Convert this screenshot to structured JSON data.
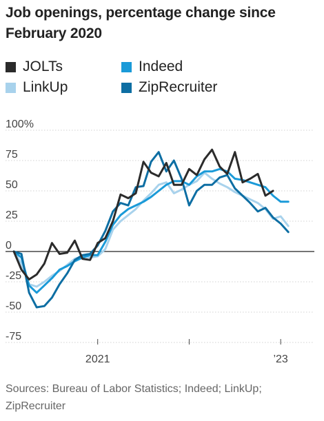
{
  "title": "Job openings, percentage change since February 2020",
  "source": "Sources: Bureau of Labor Statistics; Indeed; LinkUp; ZipRecruiter",
  "legend": [
    {
      "name": "JOLTs",
      "color": "#2b2b2b"
    },
    {
      "name": "Indeed",
      "color": "#1a9ad8"
    },
    {
      "name": "LinkUp",
      "color": "#a8d2ec"
    },
    {
      "name": "ZipRecruiter",
      "color": "#0d6ea3"
    }
  ],
  "chart_data": {
    "type": "line",
    "title": "Job openings, percentage change since February 2020",
    "xlabel": "",
    "ylabel": "",
    "y_unit": "%",
    "ylim": [
      -80,
      100
    ],
    "yticks": [
      100,
      75,
      50,
      25,
      0,
      -25,
      -50,
      -75
    ],
    "ytick_labels": [
      "100%",
      "75",
      "50",
      "25",
      "0",
      "-25",
      "-50",
      "-75"
    ],
    "xlim": [
      "2020-01",
      "2023-02"
    ],
    "xticks": [
      "2021-01",
      "2022-01",
      "2023-01"
    ],
    "xtick_labels": [
      "2021",
      "",
      "’23"
    ],
    "grid": "horizontal",
    "legend_position": "top",
    "series": [
      {
        "name": "JOLTs",
        "color": "#2b2b2b",
        "points": [
          [
            "2020-02",
            0
          ],
          [
            "2020-03",
            -15
          ],
          [
            "2020-04",
            -23
          ],
          [
            "2020-05",
            -19
          ],
          [
            "2020-06",
            -10
          ],
          [
            "2020-07",
            7
          ],
          [
            "2020-08",
            -2
          ],
          [
            "2020-09",
            -1
          ],
          [
            "2020-10",
            9
          ],
          [
            "2020-11",
            -6
          ],
          [
            "2020-12",
            -7
          ],
          [
            "2021-01",
            7
          ],
          [
            "2021-02",
            11
          ],
          [
            "2021-03",
            25
          ],
          [
            "2021-04",
            47
          ],
          [
            "2021-05",
            44
          ],
          [
            "2021-06",
            48
          ],
          [
            "2021-07",
            74
          ],
          [
            "2021-08",
            65
          ],
          [
            "2021-09",
            62
          ],
          [
            "2021-10",
            73
          ],
          [
            "2021-11",
            55
          ],
          [
            "2021-12",
            55
          ],
          [
            "2022-01",
            68
          ],
          [
            "2022-02",
            63
          ],
          [
            "2022-03",
            76
          ],
          [
            "2022-04",
            84
          ],
          [
            "2022-05",
            70
          ],
          [
            "2022-06",
            64
          ],
          [
            "2022-07",
            82
          ],
          [
            "2022-08",
            57
          ],
          [
            "2022-09",
            60
          ],
          [
            "2022-10",
            64
          ],
          [
            "2022-11",
            46
          ],
          [
            "2022-12",
            50
          ]
        ]
      },
      {
        "name": "Indeed",
        "color": "#1a9ad8",
        "points": [
          [
            "2020-02",
            0
          ],
          [
            "2020-03",
            -5
          ],
          [
            "2020-04",
            -28
          ],
          [
            "2020-05",
            -34
          ],
          [
            "2020-06",
            -28
          ],
          [
            "2020-07",
            -22
          ],
          [
            "2020-08",
            -15
          ],
          [
            "2020-09",
            -12
          ],
          [
            "2020-10",
            -8
          ],
          [
            "2020-11",
            -5
          ],
          [
            "2020-12",
            -3
          ],
          [
            "2021-01",
            -3
          ],
          [
            "2021-02",
            8
          ],
          [
            "2021-03",
            22
          ],
          [
            "2021-04",
            30
          ],
          [
            "2021-05",
            35
          ],
          [
            "2021-06",
            38
          ],
          [
            "2021-07",
            41
          ],
          [
            "2021-08",
            45
          ],
          [
            "2021-09",
            50
          ],
          [
            "2021-10",
            55
          ],
          [
            "2021-11",
            58
          ],
          [
            "2021-12",
            58
          ],
          [
            "2022-01",
            55
          ],
          [
            "2022-02",
            62
          ],
          [
            "2022-03",
            66
          ],
          [
            "2022-04",
            66
          ],
          [
            "2022-05",
            68
          ],
          [
            "2022-06",
            66
          ],
          [
            "2022-07",
            60
          ],
          [
            "2022-08",
            59
          ],
          [
            "2022-09",
            57
          ],
          [
            "2022-10",
            55
          ],
          [
            "2022-11",
            53
          ],
          [
            "2022-12",
            46
          ],
          [
            "2023-01",
            41
          ],
          [
            "2023-02",
            41
          ]
        ]
      },
      {
        "name": "LinkUp",
        "color": "#a8d2ec",
        "points": [
          [
            "2020-02",
            0
          ],
          [
            "2020-03",
            -10
          ],
          [
            "2020-04",
            -27
          ],
          [
            "2020-05",
            -29
          ],
          [
            "2020-06",
            -25
          ],
          [
            "2020-07",
            -20
          ],
          [
            "2020-08",
            -16
          ],
          [
            "2020-09",
            -11
          ],
          [
            "2020-10",
            -6
          ],
          [
            "2020-11",
            -4
          ],
          [
            "2020-12",
            -5
          ],
          [
            "2021-01",
            -4
          ],
          [
            "2021-02",
            2
          ],
          [
            "2021-03",
            18
          ],
          [
            "2021-04",
            25
          ],
          [
            "2021-05",
            30
          ],
          [
            "2021-06",
            35
          ],
          [
            "2021-07",
            42
          ],
          [
            "2021-08",
            48
          ],
          [
            "2021-09",
            55
          ],
          [
            "2021-10",
            57
          ],
          [
            "2021-11",
            48
          ],
          [
            "2021-12",
            51
          ],
          [
            "2022-01",
            55
          ],
          [
            "2022-02",
            58
          ],
          [
            "2022-03",
            65
          ],
          [
            "2022-04",
            60
          ],
          [
            "2022-05",
            56
          ],
          [
            "2022-06",
            53
          ],
          [
            "2022-07",
            49
          ],
          [
            "2022-08",
            46
          ],
          [
            "2022-09",
            43
          ],
          [
            "2022-10",
            40
          ],
          [
            "2022-11",
            35
          ],
          [
            "2022-12",
            27
          ],
          [
            "2023-01",
            29
          ],
          [
            "2023-02",
            21
          ]
        ]
      },
      {
        "name": "ZipRecruiter",
        "color": "#0d6ea3",
        "points": [
          [
            "2020-02",
            0
          ],
          [
            "2020-03",
            -2
          ],
          [
            "2020-04",
            -34
          ],
          [
            "2020-05",
            -46
          ],
          [
            "2020-06",
            -45
          ],
          [
            "2020-07",
            -38
          ],
          [
            "2020-08",
            -27
          ],
          [
            "2020-09",
            -18
          ],
          [
            "2020-10",
            -7
          ],
          [
            "2020-11",
            -3
          ],
          [
            "2020-12",
            -2
          ],
          [
            "2021-01",
            5
          ],
          [
            "2021-02",
            17
          ],
          [
            "2021-03",
            33
          ],
          [
            "2021-04",
            40
          ],
          [
            "2021-05",
            38
          ],
          [
            "2021-06",
            53
          ],
          [
            "2021-07",
            54
          ],
          [
            "2021-08",
            74
          ],
          [
            "2021-09",
            82
          ],
          [
            "2021-10",
            66
          ],
          [
            "2021-11",
            75
          ],
          [
            "2021-12",
            60
          ],
          [
            "2022-01",
            38
          ],
          [
            "2022-02",
            50
          ],
          [
            "2022-03",
            55
          ],
          [
            "2022-04",
            55
          ],
          [
            "2022-05",
            61
          ],
          [
            "2022-06",
            63
          ],
          [
            "2022-07",
            52
          ],
          [
            "2022-08",
            46
          ],
          [
            "2022-09",
            40
          ],
          [
            "2022-10",
            33
          ],
          [
            "2022-11",
            36
          ],
          [
            "2022-12",
            28
          ],
          [
            "2023-01",
            23
          ],
          [
            "2023-02",
            16
          ]
        ]
      }
    ]
  }
}
